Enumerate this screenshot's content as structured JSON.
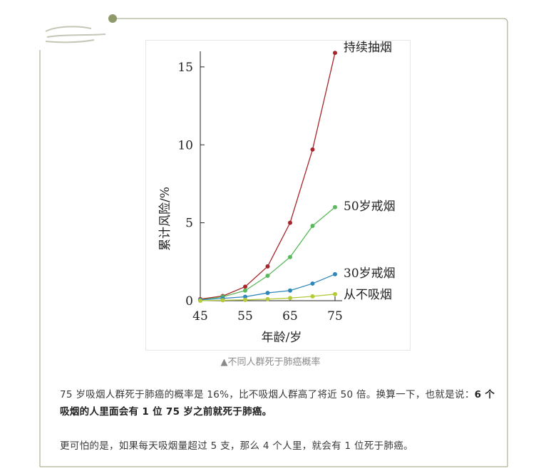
{
  "caption": "▲不同人群死于肺癌概率",
  "paragraph1": {
    "text": "75 岁吸烟人群死于肺癌的概率是 16%，比不吸烟人群高了将近 50 倍。换算一下，也就是说：",
    "bold": "6 个吸烟的人里面会有 1 位 75 岁之前就死于肺癌。"
  },
  "paragraph2": "更可怕的是，如果每天吸烟量超过 5 支，那么 4 个人里，就会有 1 位死于肺癌。",
  "colors": {
    "frame": "#9aa37a",
    "dot": "#8f9a6a"
  },
  "chart_data": {
    "type": "line",
    "xlabel": "年龄/岁",
    "ylabel": "累计风险/%",
    "xlim": [
      45,
      75
    ],
    "ylim": [
      0,
      16
    ],
    "x_ticks": [
      45,
      55,
      65,
      75
    ],
    "y_ticks": [
      0,
      5,
      10,
      15
    ],
    "x": [
      45,
      50,
      55,
      60,
      65,
      70,
      75
    ],
    "series": [
      {
        "name": "持续抽烟",
        "color": "#a8262b",
        "values": [
          0.1,
          0.3,
          0.9,
          2.2,
          5.0,
          9.7,
          15.9
        ]
      },
      {
        "name": "50岁戒烟",
        "color": "#5cb85c",
        "values": [
          0.05,
          0.25,
          0.65,
          1.6,
          2.8,
          4.8,
          6.0
        ]
      },
      {
        "name": "30岁戒烟",
        "color": "#2f86b8",
        "values": [
          0.05,
          0.15,
          0.25,
          0.5,
          0.65,
          1.1,
          1.7
        ]
      },
      {
        "name": "从不吸烟",
        "color": "#b5c93a",
        "values": [
          0.0,
          0.03,
          0.05,
          0.1,
          0.17,
          0.28,
          0.42
        ]
      }
    ]
  }
}
